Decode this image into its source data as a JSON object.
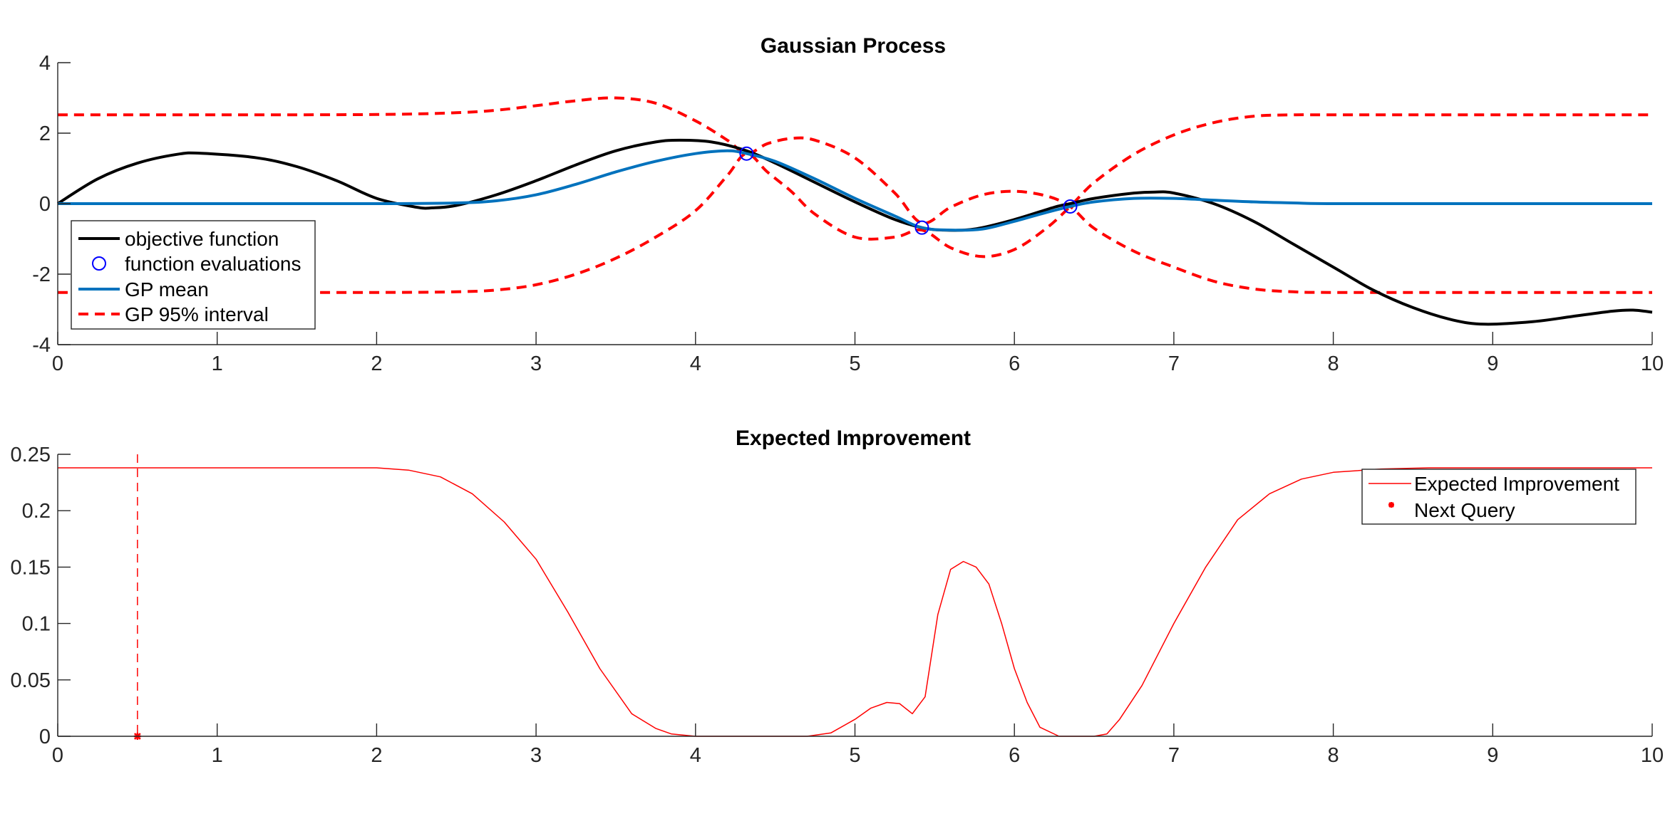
{
  "chart_data": [
    {
      "type": "line",
      "title": "Gaussian Process",
      "xlabel": "",
      "ylabel": "",
      "xlim": [
        0,
        10
      ],
      "ylim": [
        -4,
        4
      ],
      "xticks": [
        "0",
        "1",
        "2",
        "3",
        "4",
        "5",
        "6",
        "7",
        "8",
        "9",
        "10"
      ],
      "yticks": [
        "4",
        "2",
        "0",
        "-2",
        "-4"
      ],
      "grid": false,
      "legend_position": "bottom-left",
      "series": [
        {
          "name": "objective function",
          "style": "solid",
          "color": "#000000",
          "x": [
            0,
            0.25,
            0.5,
            0.75,
            0.9,
            1.25,
            1.5,
            1.75,
            2.0,
            2.25,
            2.35,
            2.5,
            2.75,
            3.0,
            3.25,
            3.5,
            3.75,
            3.9,
            4.1,
            4.32,
            4.5,
            4.75,
            5.0,
            5.25,
            5.42,
            5.55,
            5.75,
            6.0,
            6.25,
            6.35,
            6.5,
            6.75,
            6.88,
            7.0,
            7.25,
            7.5,
            7.75,
            8.0,
            8.25,
            8.5,
            8.75,
            8.95,
            9.25,
            9.5,
            9.75,
            9.88,
            10.0
          ],
          "y": [
            0.0,
            0.7,
            1.15,
            1.4,
            1.43,
            1.3,
            1.05,
            0.65,
            0.15,
            -0.1,
            -0.12,
            -0.05,
            0.25,
            0.65,
            1.1,
            1.5,
            1.75,
            1.8,
            1.75,
            1.5,
            1.15,
            0.6,
            0.05,
            -0.45,
            -0.68,
            -0.75,
            -0.72,
            -0.45,
            -0.1,
            0.0,
            0.15,
            0.3,
            0.33,
            0.3,
            0.0,
            -0.5,
            -1.15,
            -1.8,
            -2.45,
            -2.95,
            -3.3,
            -3.42,
            -3.35,
            -3.2,
            -3.05,
            -3.02,
            -3.08
          ]
        },
        {
          "name": "function evaluations",
          "style": "marker-circle",
          "color": "#0000ff",
          "x": [
            4.32,
            5.42,
            6.35
          ],
          "y": [
            1.42,
            -0.68,
            -0.08
          ]
        },
        {
          "name": "GP mean",
          "style": "solid",
          "color": "#0072bd",
          "x": [
            0,
            1,
            2,
            2.5,
            2.75,
            3.0,
            3.25,
            3.5,
            3.75,
            4.0,
            4.2,
            4.32,
            4.5,
            4.75,
            5.0,
            5.25,
            5.42,
            5.6,
            5.8,
            6.0,
            6.2,
            6.35,
            6.5,
            6.75,
            7.0,
            7.25,
            7.5,
            7.75,
            8,
            9,
            10
          ],
          "y": [
            0,
            0,
            0,
            0.02,
            0.08,
            0.25,
            0.55,
            0.9,
            1.2,
            1.42,
            1.5,
            1.42,
            1.2,
            0.7,
            0.15,
            -0.35,
            -0.68,
            -0.75,
            -0.72,
            -0.5,
            -0.25,
            -0.08,
            0.05,
            0.15,
            0.15,
            0.1,
            0.05,
            0.02,
            0,
            0,
            0
          ]
        },
        {
          "name": "GP 95% interval",
          "style": "dashed",
          "color": "#ff0000",
          "x": [
            0,
            1,
            2,
            2.5,
            2.75,
            3.0,
            3.25,
            3.5,
            3.75,
            4.0,
            4.2,
            4.32,
            4.45,
            4.6,
            4.75,
            5.0,
            5.25,
            5.42,
            5.6,
            5.8,
            6.0,
            6.2,
            6.35,
            6.5,
            6.75,
            7.0,
            7.25,
            7.5,
            7.75,
            8,
            9,
            10
          ],
          "y": [
            2.52,
            2.52,
            2.53,
            2.58,
            2.65,
            2.78,
            2.92,
            3.0,
            2.85,
            2.35,
            1.8,
            1.42,
            1.7,
            1.85,
            1.8,
            1.3,
            0.3,
            -0.55,
            -0.1,
            0.25,
            0.35,
            0.22,
            -0.08,
            -0.7,
            -1.35,
            -1.8,
            -2.2,
            -2.42,
            -2.5,
            -2.52,
            -2.52,
            -2.52
          ]
        },
        {
          "name": "",
          "style": "dashed",
          "color": "#ff0000",
          "x": [
            0,
            1,
            2,
            2.5,
            2.75,
            3.0,
            3.25,
            3.5,
            3.75,
            4.0,
            4.2,
            4.32,
            4.45,
            4.6,
            4.75,
            5.0,
            5.25,
            5.42,
            5.6,
            5.8,
            6.0,
            6.2,
            6.35,
            6.5,
            6.75,
            7.0,
            7.25,
            7.5,
            7.75,
            8,
            9,
            10
          ],
          "y": [
            -2.52,
            -2.52,
            -2.52,
            -2.5,
            -2.45,
            -2.3,
            -2.0,
            -1.55,
            -0.95,
            -0.2,
            0.8,
            1.42,
            0.9,
            0.35,
            -0.3,
            -0.95,
            -0.95,
            -0.75,
            -1.25,
            -1.5,
            -1.3,
            -0.7,
            -0.08,
            0.6,
            1.4,
            1.95,
            2.3,
            2.48,
            2.52,
            2.52,
            2.52,
            2.52
          ]
        }
      ]
    },
    {
      "type": "line",
      "title": "Expected Improvement",
      "xlabel": "",
      "ylabel": "",
      "xlim": [
        0,
        10
      ],
      "ylim": [
        0,
        0.25
      ],
      "xticks": [
        "0",
        "1",
        "2",
        "3",
        "4",
        "5",
        "6",
        "7",
        "8",
        "9",
        "10"
      ],
      "yticks": [
        "0.25",
        "0.2",
        "0.15",
        "0.1",
        "0.05",
        "0"
      ],
      "grid": false,
      "legend_position": "top-right",
      "series": [
        {
          "name": "Expected Improvement",
          "style": "solid-thin",
          "color": "#ff0000",
          "x": [
            0,
            1,
            2,
            2.2,
            2.4,
            2.6,
            2.8,
            3.0,
            3.2,
            3.4,
            3.6,
            3.75,
            3.85,
            4.0,
            4.4,
            4.7,
            4.85,
            5.0,
            5.1,
            5.2,
            5.28,
            5.36,
            5.44,
            5.52,
            5.6,
            5.68,
            5.76,
            5.84,
            5.92,
            6.0,
            6.08,
            6.16,
            6.28,
            6.5,
            6.58,
            6.66,
            6.8,
            7.0,
            7.2,
            7.4,
            7.6,
            7.8,
            8.0,
            8.3,
            8.6,
            9,
            10
          ],
          "y": [
            0.238,
            0.238,
            0.238,
            0.236,
            0.23,
            0.215,
            0.19,
            0.157,
            0.11,
            0.06,
            0.02,
            0.007,
            0.002,
            0.0,
            0.0,
            0.0,
            0.003,
            0.015,
            0.025,
            0.03,
            0.029,
            0.02,
            0.035,
            0.108,
            0.148,
            0.155,
            0.15,
            0.135,
            0.1,
            0.06,
            0.03,
            0.008,
            0.0,
            0.0,
            0.002,
            0.015,
            0.045,
            0.1,
            0.15,
            0.192,
            0.215,
            0.228,
            0.234,
            0.237,
            0.238,
            0.238,
            0.238
          ]
        },
        {
          "name": "Next Query",
          "style": "marker-star",
          "color": "#ff0000",
          "x": [
            0.5
          ],
          "y": [
            0
          ]
        }
      ]
    }
  ]
}
